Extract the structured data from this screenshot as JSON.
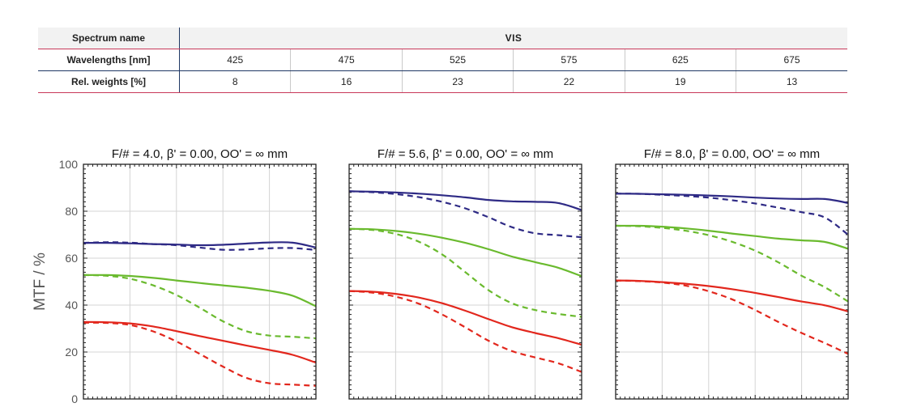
{
  "table": {
    "spectrum_label": "Spectrum name",
    "spectrum_value": "VIS",
    "wavelength_label": "Wavelengths [nm]",
    "wavelengths": [
      "425",
      "475",
      "525",
      "575",
      "625",
      "675"
    ],
    "weights_label": "Rel. weights [%]",
    "weights": [
      "8",
      "16",
      "23",
      "22",
      "19",
      "13"
    ]
  },
  "chart_data": {
    "type": "line",
    "ylabel": "MTF / %",
    "ylim": [
      0,
      100
    ],
    "yticks": [
      0,
      20,
      40,
      60,
      80,
      100
    ],
    "xlim": [
      0,
      1
    ],
    "x": [
      0,
      0.1,
      0.2,
      0.3,
      0.4,
      0.5,
      0.6,
      0.7,
      0.8,
      0.9,
      1.0
    ],
    "colors": {
      "blue": "#2e2a85",
      "green": "#6aba2e",
      "red": "#e2271d"
    },
    "grid": true,
    "panels": [
      {
        "title": "F/# = 4.0, β' = 0.00, OO' = ∞ mm",
        "series": [
          {
            "color": "blue",
            "dash": false,
            "values": [
              66.5,
              66.5,
              66.3,
              66.0,
              65.8,
              65.5,
              65.7,
              66.2,
              66.7,
              66.6,
              64.5
            ]
          },
          {
            "color": "blue",
            "dash": true,
            "values": [
              66.5,
              66.8,
              66.6,
              66.0,
              65.5,
              64.5,
              63.6,
              63.7,
              64.2,
              64.3,
              63.5
            ]
          },
          {
            "color": "green",
            "dash": false,
            "values": [
              52.8,
              52.8,
              52.4,
              51.6,
              50.5,
              49.4,
              48.4,
              47.4,
              46.1,
              44.0,
              39.5
            ]
          },
          {
            "color": "green",
            "dash": true,
            "values": [
              52.8,
              52.5,
              51.2,
              48.4,
              44.3,
              38.9,
              33.1,
              28.9,
              27.0,
              26.5,
              25.8
            ]
          },
          {
            "color": "red",
            "dash": false,
            "values": [
              32.8,
              32.7,
              32.2,
              30.9,
              28.9,
              26.8,
              24.8,
              22.8,
              20.9,
              18.8,
              15.5
            ]
          },
          {
            "color": "red",
            "dash": true,
            "values": [
              32.5,
              32.4,
              31.5,
              28.8,
              24.5,
              19.2,
              13.8,
              9.0,
              6.7,
              6.1,
              5.6
            ]
          }
        ]
      },
      {
        "title": "F/# = 5.6, β' = 0.00, OO' = ∞ mm",
        "series": [
          {
            "color": "blue",
            "dash": false,
            "values": [
              88.5,
              88.3,
              88.0,
              87.5,
              86.8,
              85.9,
              84.8,
              84.2,
              84.0,
              83.5,
              80.5
            ]
          },
          {
            "color": "blue",
            "dash": true,
            "values": [
              88.5,
              88.1,
              87.3,
              86.0,
              84.0,
              81.2,
              77.4,
              73.2,
              70.6,
              69.8,
              68.9
            ]
          },
          {
            "color": "green",
            "dash": false,
            "values": [
              72.5,
              72.3,
              71.6,
              70.4,
              68.7,
              66.5,
              63.8,
              60.7,
              58.3,
              55.9,
              52.3
            ]
          },
          {
            "color": "green",
            "dash": true,
            "values": [
              72.5,
              72.0,
              70.3,
              67.0,
              61.6,
              54.0,
              46.3,
              40.8,
              37.9,
              36.2,
              35.0
            ]
          },
          {
            "color": "red",
            "dash": false,
            "values": [
              46.0,
              45.7,
              44.8,
              43.2,
              40.8,
              37.6,
              34.0,
              30.6,
              28.1,
              25.9,
              23.1
            ]
          },
          {
            "color": "red",
            "dash": true,
            "values": [
              46.0,
              45.3,
              43.6,
              40.6,
              36.0,
              30.5,
              24.8,
              20.4,
              17.7,
              15.2,
              11.5
            ]
          }
        ]
      },
      {
        "title": "F/# = 8.0, β' = 0.00, OO' = ∞ mm",
        "series": [
          {
            "color": "blue",
            "dash": false,
            "values": [
              87.5,
              87.4,
              87.2,
              87.0,
              86.7,
              86.3,
              85.8,
              85.4,
              85.2,
              85.2,
              83.5
            ]
          },
          {
            "color": "blue",
            "dash": true,
            "values": [
              87.5,
              87.4,
              87.0,
              86.5,
              85.8,
              84.7,
              83.3,
              81.5,
              79.6,
              77.3,
              70.0
            ]
          },
          {
            "color": "green",
            "dash": false,
            "values": [
              73.8,
              73.8,
              73.4,
              72.7,
              71.7,
              70.5,
              69.4,
              68.3,
              67.6,
              66.9,
              64.0
            ]
          },
          {
            "color": "green",
            "dash": true,
            "values": [
              73.8,
              73.6,
              72.9,
              71.7,
              69.8,
              67.0,
              63.2,
              58.2,
              52.5,
              47.6,
              41.5
            ]
          },
          {
            "color": "red",
            "dash": false,
            "values": [
              50.5,
              50.3,
              49.8,
              49.1,
              48.1,
              46.8,
              45.2,
              43.4,
              41.5,
              39.9,
              37.3
            ]
          },
          {
            "color": "red",
            "dash": true,
            "values": [
              50.5,
              50.2,
              49.6,
              48.3,
              45.9,
              42.5,
              37.9,
              32.8,
              28.1,
              23.8,
              19.2
            ]
          }
        ]
      }
    ]
  }
}
